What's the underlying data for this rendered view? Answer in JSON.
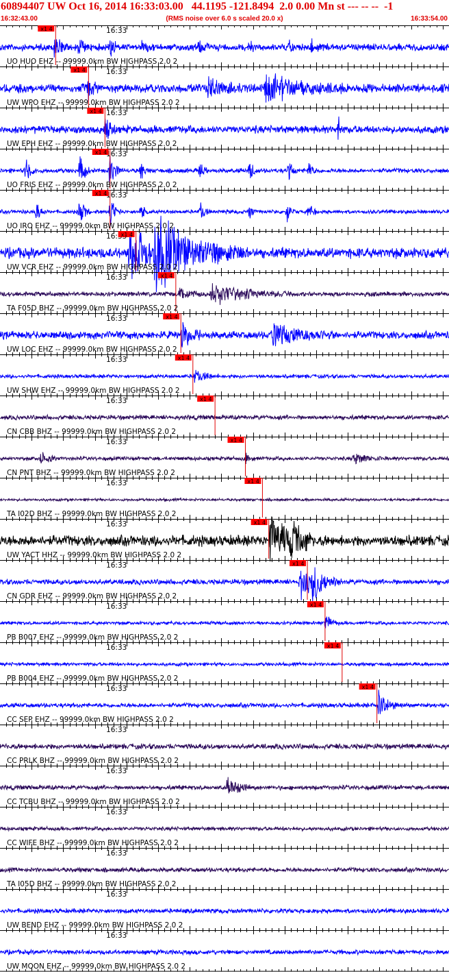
{
  "header": {
    "title": "60894407 UW Oct 16, 2014 16:33:03.00   44.1195 -121.8494  2.0 0.00 Mn st --- -- --  -1",
    "start_time": "16:32:43.00",
    "scaling_note": "(RMS noise over 6.0 s scaled 20.0 x)",
    "end_time": "16:33:54.00"
  },
  "colors": {
    "title": "#e00000",
    "trace_blue": "#0000ff",
    "trace_purple": "#2b0a5a",
    "trace_black": "#000000",
    "pick_box": "#ff0000",
    "pick_line": "#e00000",
    "axis": "#000000"
  },
  "chart_data": {
    "type": "line",
    "title": "60894407 UW Oct 16, 2014 16:33:03.00   44.1195 -121.8494  2.0 0.00 Mn st --- -- --  -1",
    "x_start": "16:32:43.00",
    "x_end": "16:33:54.00",
    "xlim_seconds": [
      0,
      71
    ],
    "minute_mark_label": "16:33",
    "minute_mark_second": 17,
    "pick_label": "x1.4",
    "pick_marker_tag": "x1 4",
    "series": [
      {
        "name": "UO HUO EHZ -- 99999.0km BW  HIGHPASS  2.0  2",
        "color": "blue",
        "amp": 0.18,
        "pick_second": 8.8,
        "events": [
          [
            8.6,
            0.8,
            0.9
          ],
          [
            12.5,
            0.5,
            0.6
          ],
          [
            17.5,
            0.5,
            0.6
          ],
          [
            22.5,
            0.3,
            0.5
          ],
          [
            31.4,
            0.4,
            0.6
          ],
          [
            39.5,
            0.3,
            0.5
          ],
          [
            45.8,
            0.35,
            0.5
          ],
          [
            49.3,
            0.3,
            0.5
          ]
        ]
      },
      {
        "name": "UW WPO EHZ -- 99999.0km BW  HIGHPASS  2.0  2",
        "color": "blue",
        "amp": 0.22,
        "pick_second": 14.0,
        "events": [
          [
            14.0,
            0.6,
            0.8
          ],
          [
            33.0,
            0.7,
            2.0
          ],
          [
            42.0,
            0.8,
            5.0
          ]
        ]
      },
      {
        "name": "UW EPH EHZ -- 99999.0km BW  HIGHPASS  2.0  2",
        "color": "blue",
        "amp": 0.2,
        "pick_second": 16.6,
        "events": [
          [
            16.6,
            0.6,
            0.8
          ],
          [
            53.5,
            0.9,
            0.3
          ]
        ]
      },
      {
        "name": "UO FRIS EHZ -- 99999.0km BW  HIGHPASS  2.0  2",
        "color": "blue",
        "amp": 0.12,
        "pick_second": 17.4,
        "events": [
          [
            4.1,
            0.6,
            0.7
          ],
          [
            12.6,
            0.8,
            0.7
          ],
          [
            17.4,
            0.9,
            0.8
          ],
          [
            22.3,
            0.5,
            0.5
          ],
          [
            31.6,
            0.5,
            0.5
          ],
          [
            39.5,
            0.5,
            0.5
          ],
          [
            45.7,
            0.5,
            0.5
          ],
          [
            48.9,
            0.5,
            0.5
          ]
        ]
      },
      {
        "name": "UO IRO EHZ -- 99999.0km BW  HIGHPASS  2.0  2",
        "color": "blue",
        "amp": 0.1,
        "pick_second": 17.4,
        "events": [
          [
            5.8,
            0.5,
            0.6
          ],
          [
            12.6,
            0.9,
            0.7
          ],
          [
            17.4,
            0.9,
            0.7
          ],
          [
            22.3,
            0.5,
            0.5
          ],
          [
            31.7,
            0.6,
            0.6
          ],
          [
            39.4,
            0.5,
            0.5
          ],
          [
            45.4,
            0.5,
            0.5
          ],
          [
            48.8,
            0.5,
            0.5
          ]
        ]
      },
      {
        "name": "UW VCR EHZ -- 99999.0km BW  HIGHPASS  2.0  2",
        "color": "blue",
        "amp": 0.28,
        "pick_second": 21.5,
        "events": [
          [
            20.5,
            1.6,
            3.0
          ],
          [
            24.5,
            1.8,
            6.0
          ]
        ]
      },
      {
        "name": "TA F05D BHZ -- 99999.0km BW  HIGHPASS  2.0  2",
        "color": "purple",
        "amp": 0.12,
        "pick_second": 27.8,
        "events": [
          [
            28.5,
            0.4,
            1.5
          ],
          [
            33.5,
            0.6,
            5.0
          ]
        ]
      },
      {
        "name": "UW LOC EHZ -- 99999.0km BW  HIGHPASS  2.0  2",
        "color": "blue",
        "amp": 0.2,
        "pick_second": 28.6,
        "events": [
          [
            28.8,
            0.8,
            1.2
          ],
          [
            43.0,
            0.6,
            4.0
          ]
        ]
      },
      {
        "name": "UW SHW EHZ -- 99999.0km BW  HIGHPASS  2.0  2",
        "color": "blue",
        "amp": 0.1,
        "pick_second": 30.5,
        "events": [
          [
            30.8,
            0.4,
            1.5
          ]
        ]
      },
      {
        "name": "CN CBB BHZ -- 99999.0km BW  HIGHPASS  2.0  2",
        "color": "purple",
        "amp": 0.12,
        "pick_second": 34.0,
        "events": []
      },
      {
        "name": "CN PNT BHZ -- 99999.0km BW  HIGHPASS  2.0  2",
        "color": "purple",
        "amp": 0.1,
        "pick_second": 38.8,
        "events": [
          [
            6.5,
            0.4,
            1.0
          ],
          [
            38.8,
            0.3,
            0.6
          ],
          [
            56.0,
            0.3,
            2.0
          ]
        ]
      },
      {
        "name": "TA I02D BHZ -- 99999.0km BW  HIGHPASS  2.0  2",
        "color": "purple",
        "amp": 0.07,
        "pick_second": 41.5,
        "events": []
      },
      {
        "name": "UW YACT HHZ -- 99999.0km BW  HIGHPASS  2.0  2",
        "color": "black",
        "amp": 0.28,
        "pick_second": 42.5,
        "events": [
          [
            42.8,
            1.4,
            2.5
          ],
          [
            46.0,
            0.8,
            1.5
          ]
        ]
      },
      {
        "name": "CN GDR EHZ -- 99999.0km BW  HIGHPASS  2.0  2",
        "color": "blue",
        "amp": 0.14,
        "pick_second": 48.6,
        "events": [
          [
            47.5,
            1.0,
            1.5
          ],
          [
            49.5,
            0.9,
            1.8
          ]
        ]
      },
      {
        "name": "PB B007 EHZ -- 99999.0km BW  HIGHPASS  2.0  2",
        "color": "blue",
        "amp": 0.09,
        "pick_second": 51.4,
        "events": [
          [
            51.6,
            0.5,
            0.8
          ]
        ]
      },
      {
        "name": "PB B004 EHZ -- 99999.0km BW  HIGHPASS  2.0  2",
        "color": "blue",
        "amp": 0.09,
        "pick_second": 54.1,
        "events": []
      },
      {
        "name": "CC SEP EHZ -- 99999.0km BW  HIGHPASS  2.0  2",
        "color": "blue",
        "amp": 0.12,
        "pick_second": 59.6,
        "events": [
          [
            59.8,
            0.9,
            1.2
          ]
        ]
      },
      {
        "name": "CC PRLK BHZ -- 99999.0km BW  HIGHPASS  2.0  2",
        "color": "purple",
        "amp": 0.14,
        "pick_second": null,
        "events": []
      },
      {
        "name": "CC TCBU BHZ -- 99999.0km BW  HIGHPASS  2.0  2",
        "color": "purple",
        "amp": 0.12,
        "pick_second": null,
        "events": [
          [
            36.0,
            0.6,
            1.5
          ]
        ]
      },
      {
        "name": "CC WIFE BHZ -- 99999.0km BW  HIGHPASS  2.0  2",
        "color": "purple",
        "amp": 0.1,
        "pick_second": null,
        "events": []
      },
      {
        "name": "TA I05D BHZ -- 99999.0km BW  HIGHPASS  2.0  2",
        "color": "purple",
        "amp": 0.12,
        "pick_second": null,
        "events": []
      },
      {
        "name": "UW BEND EHZ -- 99999.0km BW  HIGHPASS  2.0  2",
        "color": "blue",
        "amp": 0.12,
        "pick_second": null,
        "events": []
      },
      {
        "name": "UW MOON EHZ -- 99999.0km BW  HIGHPASS  2.0  2",
        "color": "blue",
        "amp": 0.12,
        "pick_second": null,
        "events": []
      }
    ]
  }
}
